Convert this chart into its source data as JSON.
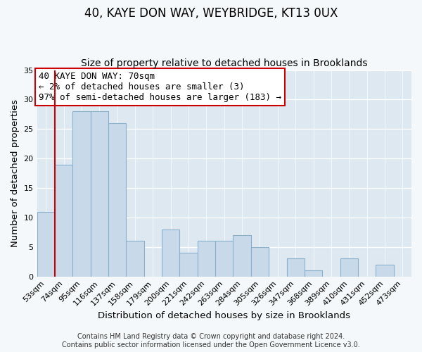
{
  "title": "40, KAYE DON WAY, WEYBRIDGE, KT13 0UX",
  "subtitle": "Size of property relative to detached houses in Brooklands",
  "xlabel": "Distribution of detached houses by size in Brooklands",
  "ylabel": "Number of detached properties",
  "bar_labels": [
    "53sqm",
    "74sqm",
    "95sqm",
    "116sqm",
    "137sqm",
    "158sqm",
    "179sqm",
    "200sqm",
    "221sqm",
    "242sqm",
    "263sqm",
    "284sqm",
    "305sqm",
    "326sqm",
    "347sqm",
    "368sqm",
    "389sqm",
    "410sqm",
    "431sqm",
    "452sqm",
    "473sqm"
  ],
  "bar_values": [
    11,
    19,
    28,
    28,
    26,
    6,
    0,
    8,
    4,
    6,
    6,
    7,
    5,
    0,
    3,
    1,
    0,
    3,
    0,
    2,
    0
  ],
  "bar_color": "#c8daea",
  "bar_edge_color": "#8ab0cc",
  "highlight_line_color": "#cc0000",
  "highlight_after_index": 0,
  "ylim": [
    0,
    35
  ],
  "yticks": [
    0,
    5,
    10,
    15,
    20,
    25,
    30,
    35
  ],
  "annotation_lines": [
    "40 KAYE DON WAY: 70sqm",
    "← 2% of detached houses are smaller (3)",
    "97% of semi-detached houses are larger (183) →"
  ],
  "annotation_box_color": "#ffffff",
  "annotation_box_edge_color": "#cc0000",
  "footer_lines": [
    "Contains HM Land Registry data © Crown copyright and database right 2024.",
    "Contains public sector information licensed under the Open Government Licence v3.0."
  ],
  "plot_bg_color": "#dde8f0",
  "fig_bg_color": "#f5f8fa",
  "grid_color": "#ffffff",
  "title_fontsize": 12,
  "subtitle_fontsize": 10,
  "axis_label_fontsize": 9.5,
  "tick_fontsize": 8,
  "annotation_fontsize": 9,
  "footer_fontsize": 7
}
